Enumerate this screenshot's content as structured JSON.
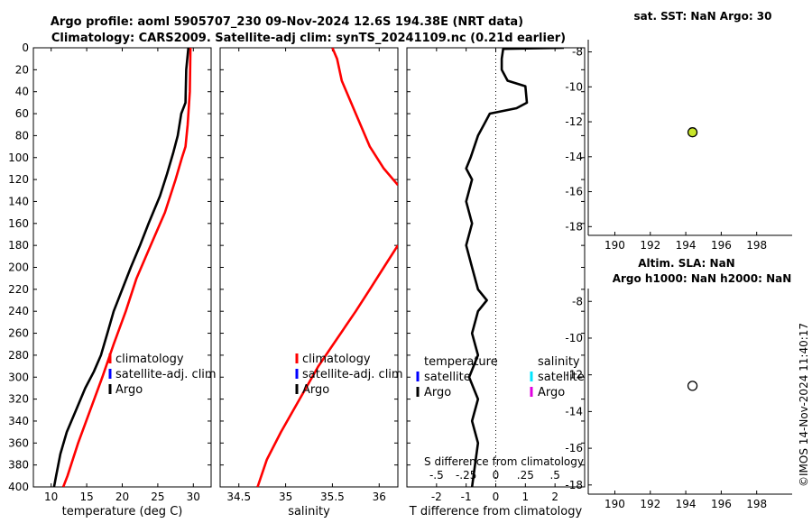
{
  "header": {
    "title_line1": "Argo profile: aoml 5905707_230 09-Nov-2024 12.6S 194.38E (NRT data)",
    "title_line2": "Climatology: CARS2009. Satellite-adj clim: synTS_20241109.nc (0.21d earlier)"
  },
  "colors": {
    "climatology": "#ff0000",
    "satellite": "#0000ff",
    "argo": "#000000",
    "sat_salinity": "#00e5ff",
    "argo_salinity": "#e000e0",
    "sst_marker": "#c8e62a"
  },
  "chart_data": [
    {
      "id": "temperature",
      "type": "line",
      "xlabel": "temperature (deg C)",
      "ylabel": "",
      "xlim": [
        7.5,
        32.5
      ],
      "ylim": [
        400,
        0
      ],
      "xticks": [
        10,
        15,
        20,
        25,
        30
      ],
      "yticks": [
        0,
        20,
        40,
        60,
        80,
        100,
        120,
        140,
        160,
        180,
        200,
        220,
        240,
        260,
        280,
        300,
        320,
        340,
        360,
        380,
        400
      ],
      "legend": [
        "climatology",
        "satellite-adj. clim",
        "Argo"
      ],
      "series": [
        {
          "name": "climatology",
          "color": "#ff0000",
          "points": [
            [
              29.6,
              0
            ],
            [
              29.5,
              40
            ],
            [
              29.2,
              70
            ],
            [
              28.9,
              90
            ],
            [
              28.4,
              100
            ],
            [
              27.5,
              120
            ],
            [
              26.0,
              150
            ],
            [
              24.0,
              180
            ],
            [
              22.0,
              210
            ],
            [
              20.5,
              240
            ],
            [
              18.8,
              270
            ],
            [
              17.2,
              300
            ],
            [
              15.5,
              330
            ],
            [
              13.8,
              360
            ],
            [
              12.3,
              390
            ],
            [
              11.7,
              400
            ]
          ]
        },
        {
          "name": "Argo",
          "color": "#000000",
          "points": [
            [
              29.3,
              0
            ],
            [
              29.0,
              20
            ],
            [
              28.9,
              50
            ],
            [
              28.3,
              60
            ],
            [
              27.8,
              80
            ],
            [
              27.2,
              95
            ],
            [
              26.3,
              115
            ],
            [
              25.3,
              135
            ],
            [
              23.7,
              160
            ],
            [
              22.5,
              180
            ],
            [
              21.2,
              200
            ],
            [
              20.0,
              220
            ],
            [
              18.8,
              240
            ],
            [
              17.9,
              260
            ],
            [
              17.0,
              280
            ],
            [
              16.0,
              295
            ],
            [
              14.8,
              310
            ],
            [
              13.5,
              330
            ],
            [
              12.2,
              350
            ],
            [
              11.3,
              370
            ],
            [
              10.7,
              390
            ],
            [
              10.4,
              400
            ]
          ]
        }
      ]
    },
    {
      "id": "salinity",
      "type": "line",
      "xlabel": "salinity",
      "ylabel": "",
      "xlim": [
        34.3,
        36.2
      ],
      "ylim": [
        400,
        0
      ],
      "xticks": [
        34.5,
        35,
        35.5,
        36
      ],
      "legend": [
        "climatology",
        "satellite-adj. clim",
        "Argo"
      ],
      "series": [
        {
          "name": "climatology",
          "color": "#ff0000",
          "segments": [
            [
              [
                35.5,
                0
              ],
              [
                35.55,
                10
              ],
              [
                35.6,
                30
              ],
              [
                35.75,
                60
              ],
              [
                35.9,
                90
              ],
              [
                36.05,
                110
              ],
              [
                36.2,
                125
              ]
            ],
            [
              [
                36.2,
                180
              ],
              [
                36.05,
                200
              ],
              [
                35.9,
                220
              ],
              [
                35.75,
                240
              ],
              [
                35.55,
                265
              ],
              [
                35.35,
                290
              ],
              [
                35.15,
                320
              ],
              [
                34.95,
                350
              ],
              [
                34.8,
                375
              ],
              [
                34.7,
                400
              ]
            ]
          ]
        }
      ]
    },
    {
      "id": "difference",
      "type": "line",
      "xlabel": "T difference from climatology",
      "x2label": "S difference from climatology",
      "xlim": [
        -3,
        3
      ],
      "x2ticks": [
        -0.5,
        -0.25,
        0,
        0.25,
        0.5
      ],
      "xticks": [
        -2,
        -1,
        0,
        1,
        2
      ],
      "ylim": [
        400,
        0
      ],
      "legend_temperature": {
        "title": "temperature",
        "items": [
          "satellite",
          "Argo"
        ]
      },
      "legend_salinity": {
        "title": "salinity",
        "items": [
          "satellite",
          "Argo"
        ]
      },
      "series": [
        {
          "name": "Argo T diff",
          "color": "#000000",
          "points": [
            [
              2.3,
              0
            ],
            [
              0.25,
              1
            ],
            [
              0.2,
              10
            ],
            [
              0.2,
              20
            ],
            [
              0.4,
              30
            ],
            [
              1.0,
              35
            ],
            [
              1.05,
              50
            ],
            [
              0.7,
              55
            ],
            [
              -0.2,
              60
            ],
            [
              -0.4,
              70
            ],
            [
              -0.6,
              80
            ],
            [
              -0.85,
              100
            ],
            [
              -1.0,
              110
            ],
            [
              -0.8,
              120
            ],
            [
              -1.0,
              140
            ],
            [
              -0.8,
              160
            ],
            [
              -1.0,
              180
            ],
            [
              -0.8,
              200
            ],
            [
              -0.6,
              220
            ],
            [
              -0.3,
              230
            ],
            [
              -0.6,
              240
            ],
            [
              -0.8,
              260
            ],
            [
              -0.6,
              280
            ],
            [
              -0.9,
              300
            ],
            [
              -0.6,
              320
            ],
            [
              -0.8,
              340
            ],
            [
              -0.6,
              360
            ],
            [
              -0.7,
              380
            ],
            [
              -0.8,
              400
            ]
          ]
        }
      ]
    },
    {
      "id": "sst_map",
      "type": "scatter",
      "title": "sat. SST: NaN Argo: 30",
      "xlim": [
        188.5,
        200
      ],
      "ylim": [
        -18.5,
        -7.3
      ],
      "xticks": [
        190,
        192,
        194,
        196,
        198
      ],
      "yticks": [
        -8,
        -10,
        -12,
        -14,
        -16,
        -18
      ],
      "points": [
        {
          "x": 194.38,
          "y": -12.6,
          "fill": "#c8e62a"
        }
      ]
    },
    {
      "id": "sla_map",
      "type": "scatter",
      "title_line1": "Altim. SLA: NaN",
      "title_line2": "Argo h1000: NaN h2000: NaN",
      "xlim": [
        188.5,
        200
      ],
      "ylim": [
        -18.5,
        -7.3
      ],
      "xticks": [
        190,
        192,
        194,
        196,
        198
      ],
      "yticks": [
        -8,
        -10,
        -12,
        -14,
        -16,
        -18
      ],
      "points": [
        {
          "x": 194.38,
          "y": -12.6,
          "fill": "#ffffff"
        }
      ]
    }
  ],
  "footer": {
    "credit": "©IMOS 14-Nov-2024 11:40:17"
  }
}
